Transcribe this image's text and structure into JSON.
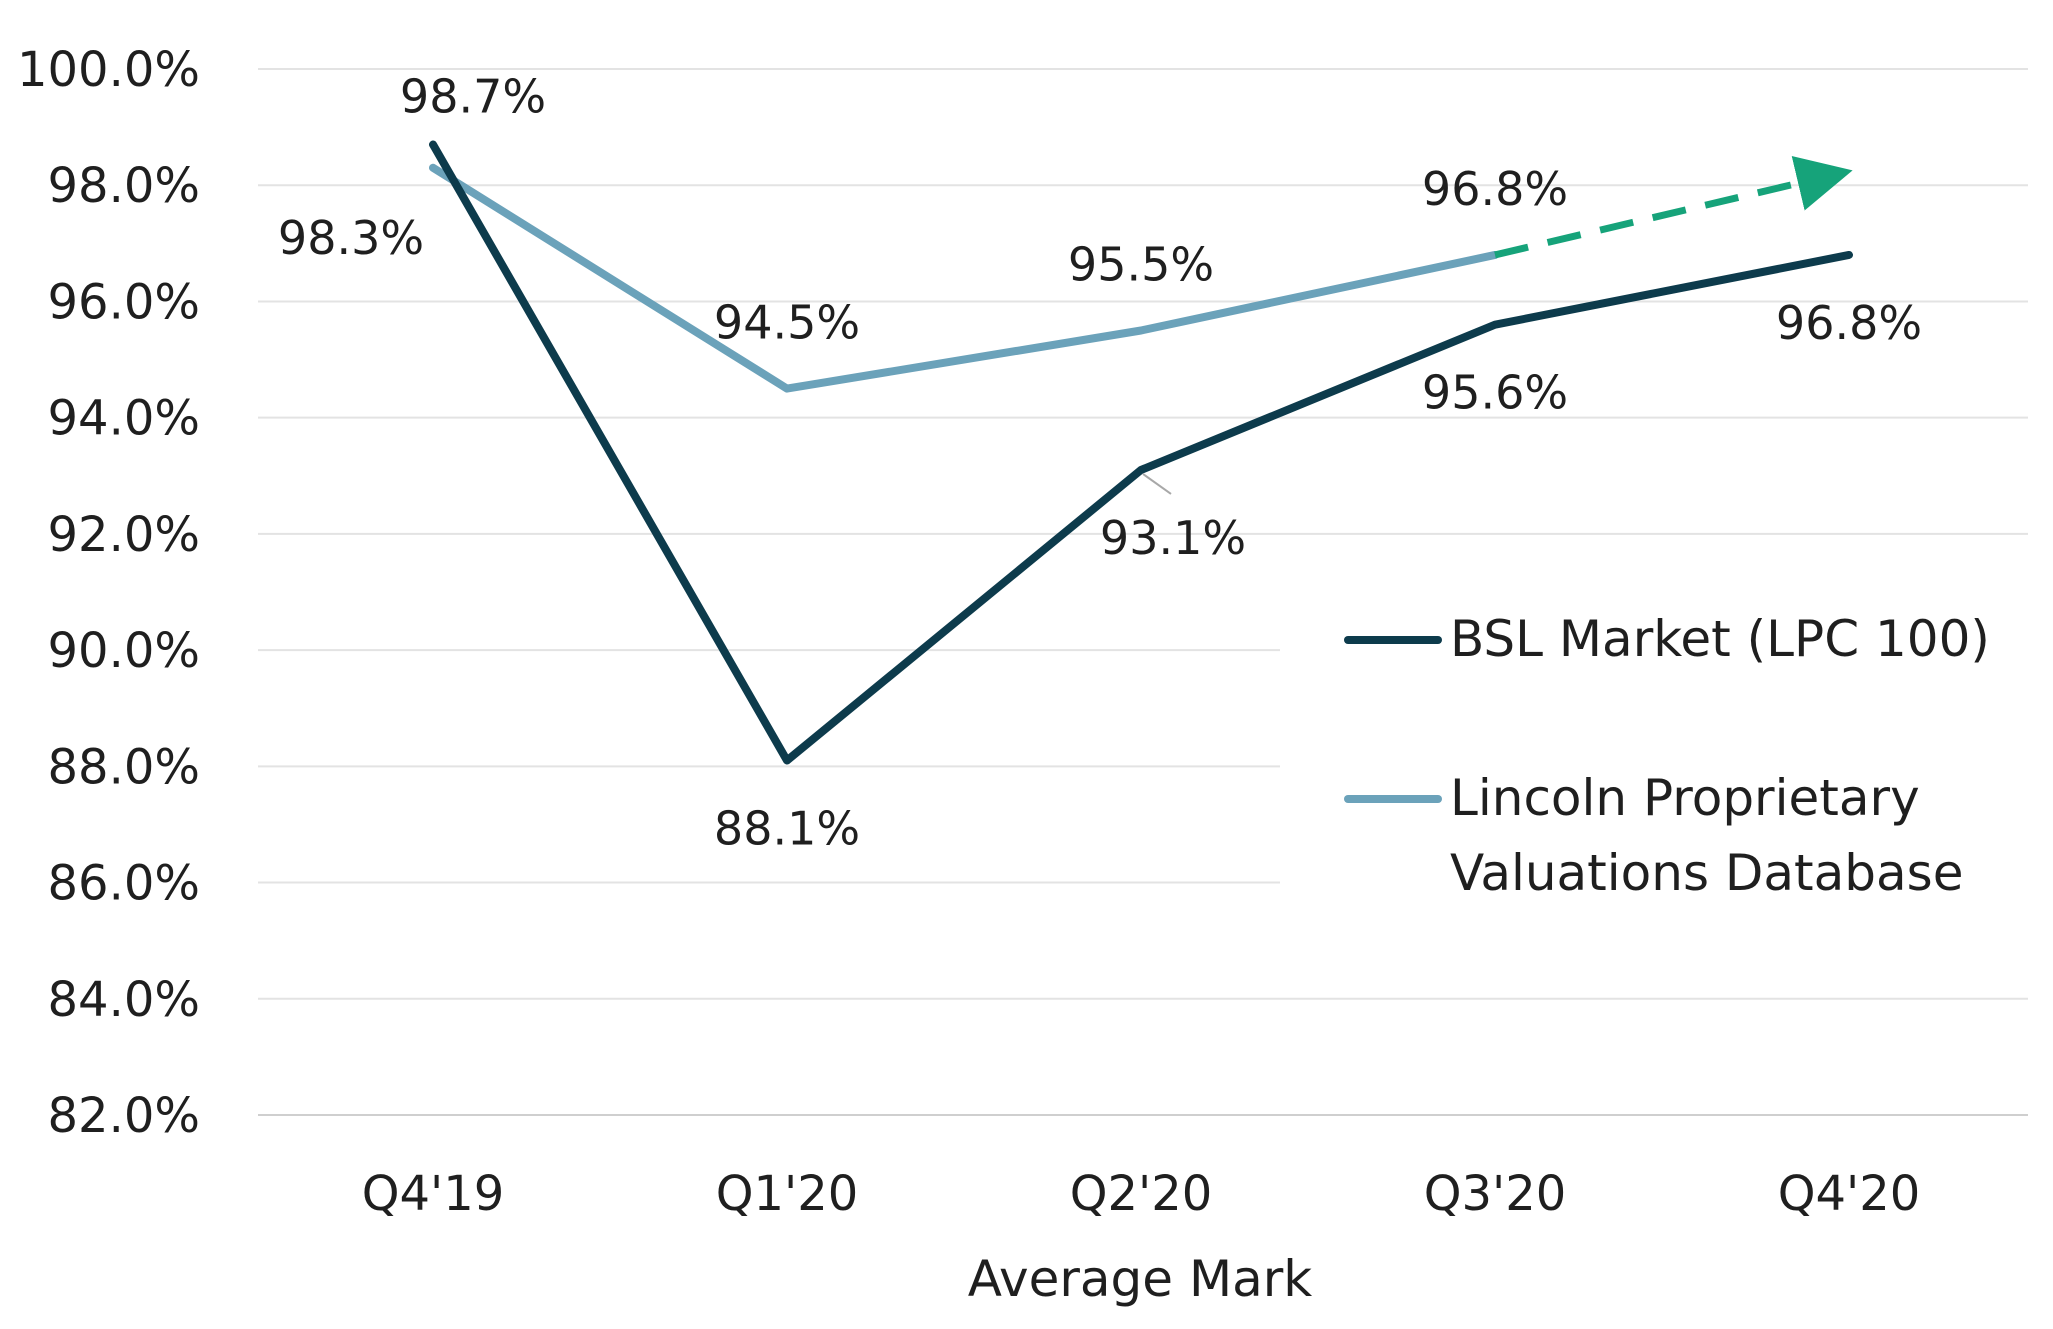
{
  "chart_data": {
    "type": "line",
    "xlabel": "Average Mark",
    "categories": [
      "Q4'19",
      "Q1'20",
      "Q2'20",
      "Q3'20",
      "Q4'20"
    ],
    "y_tick_labels": [
      "82.0%",
      "84.0%",
      "86.0%",
      "88.0%",
      "90.0%",
      "92.0%",
      "94.0%",
      "96.0%",
      "98.0%",
      "100.0%"
    ],
    "ylim": [
      82,
      100
    ],
    "y_step": 2,
    "grid": true,
    "legend_position": "right",
    "series": [
      {
        "name": "BSL Market (LPC 100)",
        "color": "#0d3b4c",
        "values": [
          98.7,
          88.1,
          93.1,
          95.6,
          96.8
        ],
        "labels": [
          "98.7%",
          "88.1%",
          "93.1%",
          "95.6%",
          "96.8%"
        ]
      },
      {
        "name": "Lincoln Proprietary Valuations Database",
        "name_lines": [
          "Lincoln Proprietary",
          "Valuations Database"
        ],
        "color": "#6ba2ba",
        "values": [
          98.3,
          94.5,
          95.5,
          96.8,
          null
        ],
        "labels": [
          "98.3%",
          "94.5%",
          "95.5%",
          "96.8%",
          null
        ]
      }
    ],
    "projection": {
      "style": "dashed-arrow",
      "color": "#16a37a",
      "from": {
        "x": "Q3'20",
        "y": 96.8
      },
      "to": {
        "x": "Q4'20",
        "y": 98.2
      }
    }
  }
}
